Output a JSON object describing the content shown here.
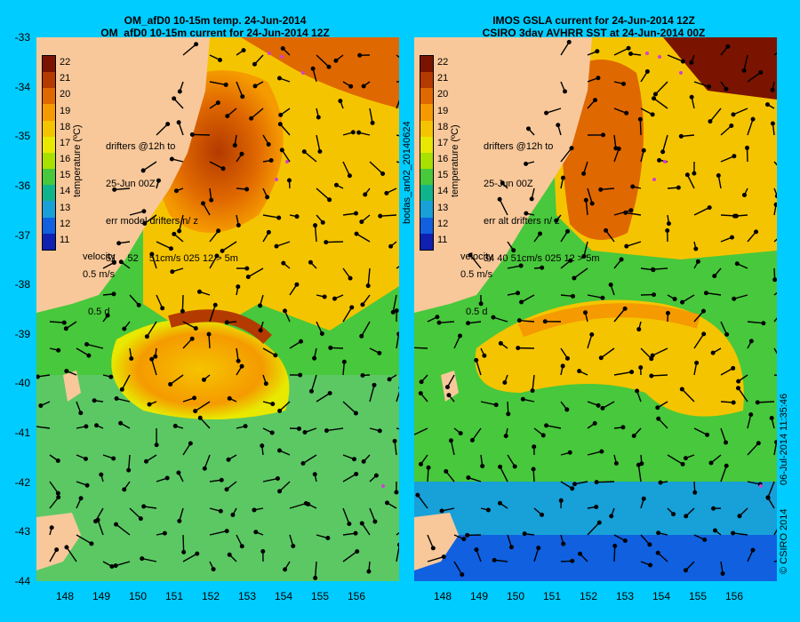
{
  "left": {
    "title_line1": "OM_afD0 10-15m temp. 24-Jun-2014",
    "title_line2": "OM_afD0 10-15m current for 24-Jun-2014 12Z",
    "drifters_line1": "drifters @12h to",
    "drifters_line2": "25-Jun 00Z",
    "drifters_line3": "err model drifters n/ z",
    "drifters_line4": "51    52    51cm/s 025 12 > 5m",
    "velocity_label": "velocity",
    "velocity_scale1": "0.5 m/s",
    "velocity_scale2": "0.5 d"
  },
  "right": {
    "title_line1": "IMOS GSLA current for 24-Jun-2014 12Z",
    "title_line2": "CSIRO 3day AVHRR SST at 24-Jun-2014 00Z",
    "drifters_line1": "drifters @12h to",
    "drifters_line2": "25-Jun 00Z",
    "drifters_line3": "err alt drifters n/ z",
    "drifters_line4": "34 40 51cm/s 025 12 > 5m",
    "velocity_label": "velocity",
    "velocity_scale1": "0.5 m/s",
    "velocity_scale2": "0.5 d"
  },
  "colorbar": {
    "title": "temperature (ºC)",
    "labels": [
      "22",
      "21",
      "20",
      "19",
      "18",
      "17",
      "16",
      "15",
      "14",
      "13",
      "12",
      "11"
    ],
    "colors": [
      "#7a1400",
      "#b33a00",
      "#e06800",
      "#f59a00",
      "#f5c400",
      "#e8e800",
      "#a8e000",
      "#48c83c",
      "#10b48c",
      "#18a0d8",
      "#1060e0",
      "#1020b0"
    ]
  },
  "y_ticks": [
    "-33",
    "-34",
    "-35",
    "-36",
    "-37",
    "-38",
    "-39",
    "-40",
    "-41",
    "-42",
    "-43",
    "-44"
  ],
  "x_ticks": [
    "148",
    "149",
    "150",
    "151",
    "152",
    "153",
    "154",
    "155",
    "156"
  ],
  "side_label_mid": "bodas_an02_20140624",
  "side_label_right": "06-Jul-2014 11:35:46",
  "copyright": "© CSIRO 2014",
  "colors": {
    "background": "#00ccff",
    "land": "#f8c89a",
    "arrow": "#000000",
    "drifter": "#d040d0"
  }
}
